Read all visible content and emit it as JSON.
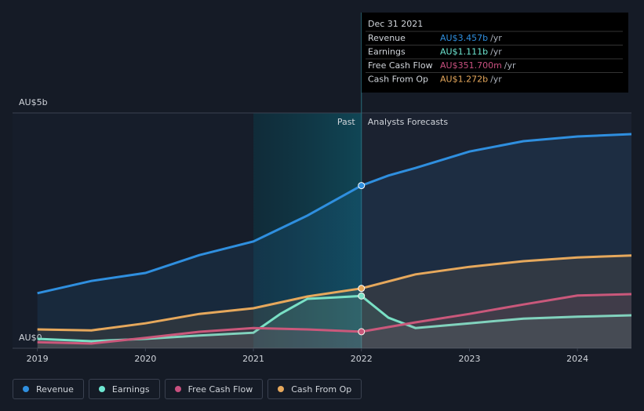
{
  "chart_data": {
    "type": "line",
    "series": [
      {
        "name": "Revenue",
        "color": "#2f8fdf",
        "x": [
          2019,
          2019.5,
          2020,
          2020.5,
          2021,
          2021.5,
          2022,
          2022.25,
          2022.5,
          2023,
          2023.5,
          2024,
          2024.5
        ],
        "values": [
          1.17,
          1.43,
          1.6,
          1.98,
          2.27,
          2.82,
          3.457,
          3.67,
          3.83,
          4.18,
          4.4,
          4.5,
          4.55
        ]
      },
      {
        "name": "Earnings",
        "color": "#6ee7d2",
        "x": [
          2019,
          2019.5,
          2020,
          2020.5,
          2021,
          2021.25,
          2021.5,
          2021.75,
          2022,
          2022.25,
          2022.5,
          2023,
          2023.5,
          2024,
          2024.5
        ],
        "values": [
          0.2,
          0.15,
          0.2,
          0.27,
          0.33,
          0.73,
          1.05,
          1.08,
          1.111,
          0.65,
          0.43,
          0.53,
          0.63,
          0.67,
          0.7
        ]
      },
      {
        "name": "Free Cash Flow",
        "color": "#c8507f",
        "x": [
          2019,
          2019.5,
          2020,
          2020.5,
          2021,
          2021.5,
          2022,
          2022.5,
          2023,
          2023.5,
          2024,
          2024.5
        ],
        "values": [
          0.13,
          0.1,
          0.22,
          0.35,
          0.43,
          0.4,
          0.3517,
          0.55,
          0.73,
          0.93,
          1.12,
          1.15
        ]
      },
      {
        "name": "Cash From Op",
        "color": "#e6a85c",
        "x": [
          2019,
          2019.5,
          2020,
          2020.5,
          2021,
          2021.5,
          2022,
          2022.5,
          2023,
          2023.5,
          2024,
          2024.5
        ],
        "values": [
          0.4,
          0.38,
          0.53,
          0.73,
          0.85,
          1.1,
          1.272,
          1.57,
          1.73,
          1.85,
          1.93,
          1.97
        ]
      }
    ],
    "xlim": [
      2018.77,
      2024.5
    ],
    "xticks": [
      2019,
      2020,
      2021,
      2022,
      2023,
      2024
    ],
    "ylim": [
      0,
      5
    ],
    "yticks": [
      {
        "value": 0,
        "label": "AU$0"
      },
      {
        "value": 5,
        "label": "AU$5b"
      }
    ],
    "x_highlight": [
      2021,
      2022
    ],
    "past_label": "Past",
    "forecast_label": "Analysts Forecasts",
    "tooltip": {
      "date": "Dec 31 2021",
      "rows": [
        {
          "label": "Revenue",
          "value": "AU$3.457b",
          "unit": "/yr"
        },
        {
          "label": "Earnings",
          "value": "AU$1.111b",
          "unit": "/yr"
        },
        {
          "label": "Free Cash Flow",
          "value": "AU$351.700m",
          "unit": "/yr"
        },
        {
          "label": "Cash From Op",
          "value": "AU$1.272b",
          "unit": "/yr"
        }
      ]
    },
    "legend": "bottom"
  }
}
